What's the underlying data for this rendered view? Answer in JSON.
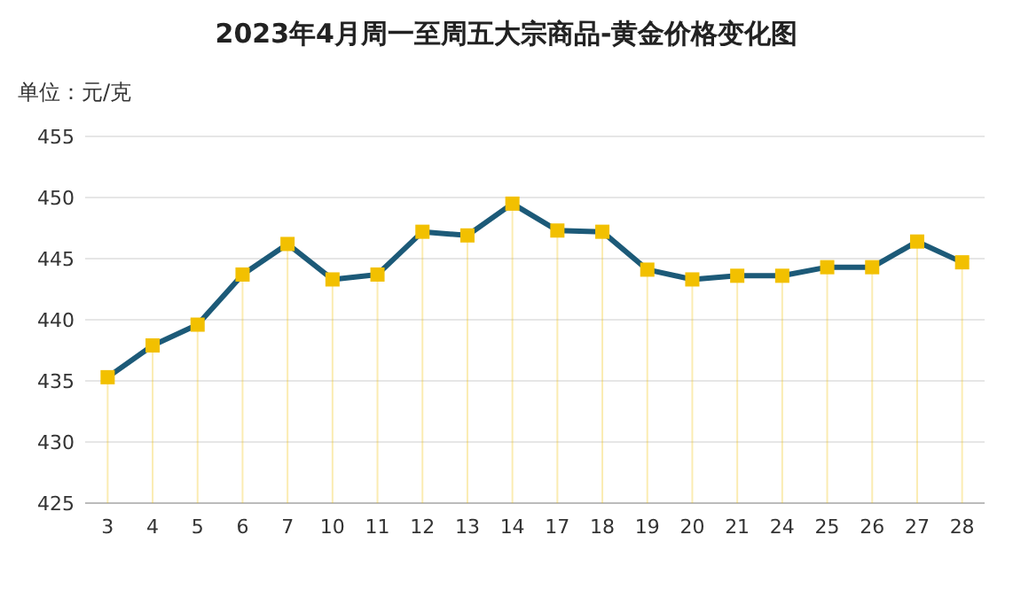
{
  "chart_data": {
    "type": "lollipop",
    "title": "2023年4月周一至周五大宗商品-黄金价格变化图",
    "ylabel": "单位：元/克",
    "categories": [
      "3",
      "4",
      "5",
      "6",
      "7",
      "10",
      "11",
      "12",
      "13",
      "14",
      "17",
      "18",
      "19",
      "20",
      "21",
      "24",
      "25",
      "26",
      "27",
      "28"
    ],
    "series": [
      {
        "color": "#f2c000",
        "values": [
          435.3,
          437.9,
          439.6,
          443.7,
          446.2,
          443.3,
          443.7,
          447.2,
          446.9,
          449.5,
          447.3,
          447.2,
          444.1,
          443.3,
          443.6,
          443.6,
          444.3,
          444.3,
          446.4,
          444.7
        ]
      },
      {
        "type": "line",
        "marker": "none",
        "color": "#1c5a78",
        "values": [
          435.3,
          437.9,
          439.6,
          443.7,
          446.2,
          443.3,
          443.7,
          447.2,
          446.9,
          449.5,
          447.3,
          447.2,
          444.1,
          443.3,
          443.6,
          443.6,
          444.3,
          444.3,
          446.4,
          444.7
        ]
      }
    ],
    "ylim": [
      425,
      455
    ],
    "yticks": [
      425,
      430,
      435,
      440,
      445,
      450,
      455
    ],
    "grid": true,
    "marker": "square"
  }
}
